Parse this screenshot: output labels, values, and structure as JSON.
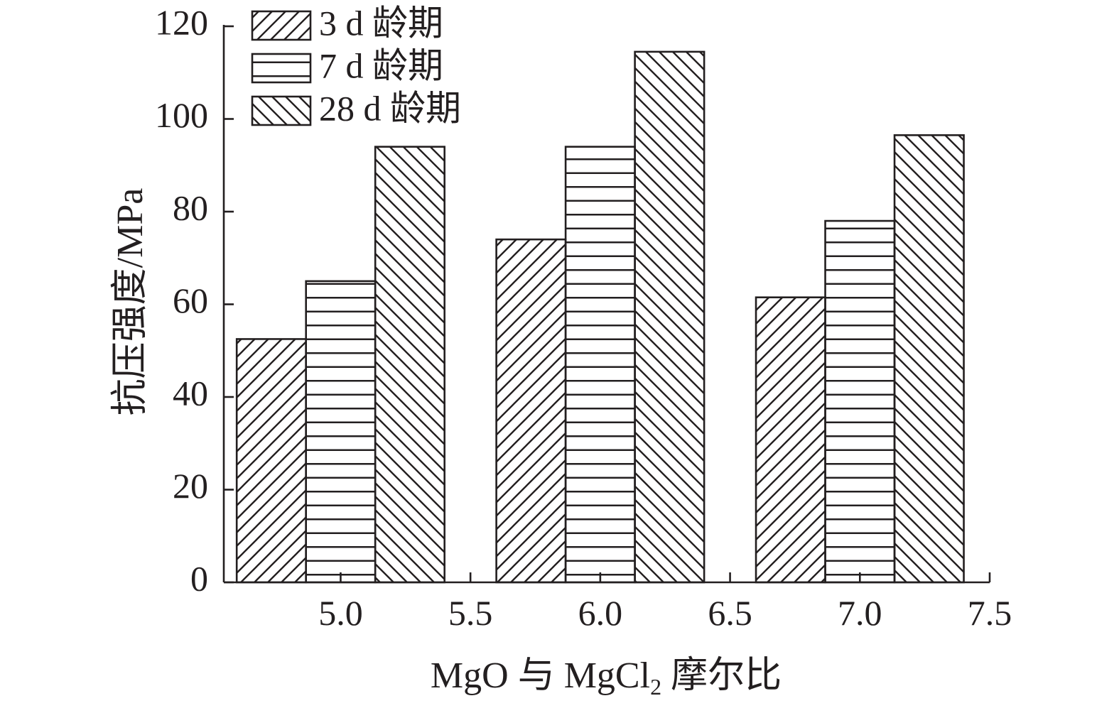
{
  "chart_data": {
    "type": "bar",
    "title": "",
    "xlabel": {
      "main": "MgO 与 MgCl",
      "sub": "2",
      "suffix": " 摩尔比"
    },
    "ylabel": "抗压强度/MPa",
    "ylim": [
      0,
      120
    ],
    "y_ticks": [
      0,
      20,
      40,
      60,
      80,
      100,
      120
    ],
    "xlim": [
      4.55,
      7.5
    ],
    "x_ticks": [
      "5.0",
      "5.5",
      "6.0",
      "6.5",
      "7.0",
      "7.5"
    ],
    "categories": [
      "5.0",
      "6.0",
      "7.0"
    ],
    "series": [
      {
        "name": "3 d 龄期",
        "pattern": "diagonal-up",
        "values": [
          52.5,
          74.0,
          61.5
        ]
      },
      {
        "name": "7 d 龄期",
        "pattern": "horizontal",
        "values": [
          65.0,
          94.0,
          78.0
        ]
      },
      {
        "name": "28 d 龄期",
        "pattern": "diagonal-down",
        "values": [
          94.0,
          114.5,
          96.5
        ]
      }
    ],
    "grid": false,
    "legend_position": "top-left",
    "colors": {
      "stroke": "#231f20",
      "fill": "#ffffff"
    }
  }
}
